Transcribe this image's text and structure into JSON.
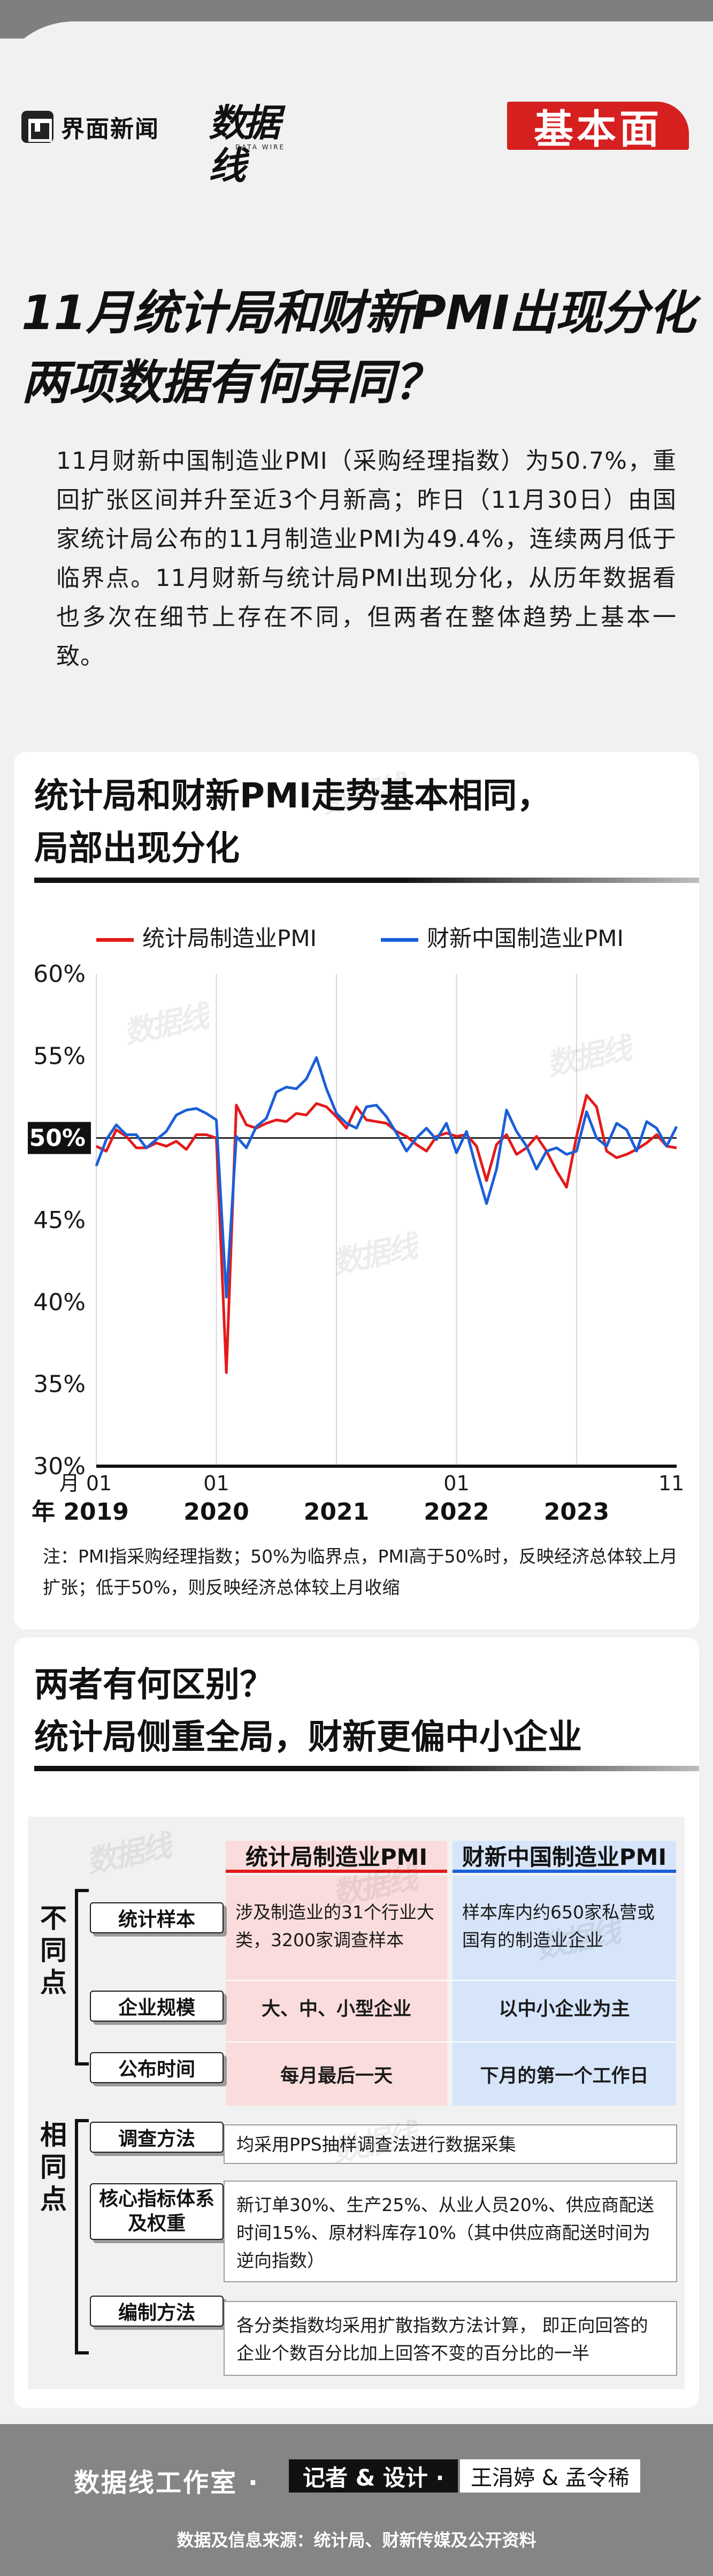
{
  "header": {
    "brand_name": "界面新闻",
    "dataline_logo": "数据线",
    "dataline_sub": "DATA WIRE",
    "column_badge": "基本面"
  },
  "article": {
    "headline_line1": "11月统计局和财新PMI出现分化",
    "headline_line2": "两项数据有何异同？",
    "intro": "11月财新中国制造业PMI（采购经理指数）为50.7%，重回扩张区间并升至近3个月新高；昨日（11月30日）由国家统计局公布的11月制造业PMI为49.4%，连续两月低于临界点。11月财新与统计局PMI出现分化，从历年数据看也多次在细节上存在不同，但两者在整体趋势上基本一致。"
  },
  "chart_section": {
    "title_line1": "统计局和财新PMI走势基本相同，",
    "title_line2": "局部出现分化",
    "note": "注：PMI指采购经理指数；50%为临界点，PMI高于50%时，反映经济总体较上月扩张；低于50%，则反映经济总体较上月收缩"
  },
  "chart_data": {
    "type": "line",
    "title": "统计局和财新PMI走势基本相同，局部出现分化",
    "x": [
      "2019-01",
      "2019-02",
      "2019-03",
      "2019-04",
      "2019-05",
      "2019-06",
      "2019-07",
      "2019-08",
      "2019-09",
      "2019-10",
      "2019-11",
      "2019-12",
      "2020-01",
      "2020-02",
      "2020-03",
      "2020-04",
      "2020-05",
      "2020-06",
      "2020-07",
      "2020-08",
      "2020-09",
      "2020-10",
      "2020-11",
      "2020-12",
      "2021-01",
      "2021-02",
      "2021-03",
      "2021-04",
      "2021-05",
      "2021-06",
      "2021-07",
      "2021-08",
      "2021-09",
      "2021-10",
      "2021-11",
      "2021-12",
      "2022-01",
      "2022-02",
      "2022-03",
      "2022-04",
      "2022-05",
      "2022-06",
      "2022-07",
      "2022-08",
      "2022-09",
      "2022-10",
      "2022-11",
      "2022-12",
      "2023-01",
      "2023-02",
      "2023-03",
      "2023-04",
      "2023-05",
      "2023-06",
      "2023-07",
      "2023-08",
      "2023-09",
      "2023-10",
      "2023-11"
    ],
    "series": [
      {
        "name": "统计局制造业PMI",
        "color": "#e41a1a",
        "values": [
          49.5,
          49.2,
          50.5,
          50.1,
          49.4,
          49.4,
          49.7,
          49.5,
          49.8,
          49.3,
          50.2,
          50.2,
          50.0,
          35.7,
          52.0,
          50.8,
          50.6,
          50.9,
          51.1,
          51.0,
          51.5,
          51.4,
          52.1,
          51.9,
          51.3,
          50.6,
          51.9,
          51.1,
          51.0,
          50.9,
          50.4,
          50.1,
          49.6,
          49.2,
          50.1,
          50.3,
          50.1,
          50.2,
          49.5,
          47.4,
          49.6,
          50.2,
          49.0,
          49.4,
          50.1,
          49.2,
          48.0,
          47.0,
          50.1,
          52.6,
          51.9,
          49.2,
          48.8,
          49.0,
          49.3,
          49.7,
          50.2,
          49.5,
          49.4
        ]
      },
      {
        "name": "财新中国制造业PMI",
        "color": "#1a5fd8",
        "values": [
          48.3,
          49.9,
          50.8,
          50.2,
          50.2,
          49.4,
          49.9,
          50.4,
          51.4,
          51.7,
          51.8,
          51.5,
          51.1,
          40.3,
          50.1,
          49.4,
          50.7,
          51.2,
          52.8,
          53.1,
          53.0,
          53.6,
          54.9,
          53.0,
          51.5,
          50.9,
          50.6,
          51.9,
          52.0,
          51.3,
          50.3,
          49.2,
          50.0,
          50.6,
          49.9,
          50.9,
          49.1,
          50.4,
          48.1,
          46.0,
          48.1,
          51.7,
          50.4,
          49.5,
          48.1,
          49.2,
          49.4,
          49.0,
          49.2,
          51.6,
          50.0,
          49.5,
          50.9,
          50.5,
          49.2,
          51.0,
          50.6,
          49.5,
          50.7
        ]
      }
    ],
    "xtick_labels": [
      {
        "month": "01",
        "year": "2019",
        "year_prefix": "年 "
      },
      {
        "month": "01",
        "year": "2020"
      },
      {
        "month": "",
        "year": "2021"
      },
      {
        "month": "01",
        "year": "2022"
      },
      {
        "month": "",
        "year": "2023"
      },
      {
        "month": "11",
        "year": ""
      }
    ],
    "xtick_month_prefix": "月 ",
    "ylim": [
      30,
      60
    ],
    "yticks": [
      "30%",
      "35%",
      "40%",
      "45%",
      "50%",
      "55%",
      "60%"
    ],
    "reference_line": 50,
    "reference_label": "50%",
    "grid": "vertical at January of each year",
    "legend": "top"
  },
  "comparison": {
    "title_line1": "两者有何区别？",
    "title_line2": "统计局侧重全局，财新更偏中小企业",
    "col1_header": "统计局制造业PMI",
    "col2_header": "财新中国制造业PMI",
    "diff_label": "不同点",
    "same_label": "相同点",
    "rows_diff": [
      {
        "label": "统计样本",
        "col1": "涉及制造业的31个行业大类，3200家调查样本",
        "col2": "样本库内约650家私营或国有的制造业企业"
      },
      {
        "label": "企业规模",
        "col1": "大、中、小型企业",
        "col2": "以中小企业为主"
      },
      {
        "label": "公布时间",
        "col1": "每月最后一天",
        "col2": "下月的第一个工作日"
      }
    ],
    "rows_same": [
      {
        "label": "调查方法",
        "text": "均采用PPS抽样调查法进行数据采集"
      },
      {
        "label": "核心指标体系及权重",
        "text": "新订单30%、生产25%、从业人员20%、供应商配送时间15%、原材料库存10%（其中供应商配送时间为逆向指数）"
      },
      {
        "label": "编制方法",
        "text": "各分类指数均采用扩散指数方法计算， 即正向回答的企业个数百分比加上回答不变的百分比的一半"
      }
    ]
  },
  "footer": {
    "studio": "数据线工作室 ·",
    "role": "记者 & 设计 ·",
    "names": "王涓婷 & 孟令稀",
    "source": "数据及信息来源：统计局、财新传媒及公开资料"
  }
}
